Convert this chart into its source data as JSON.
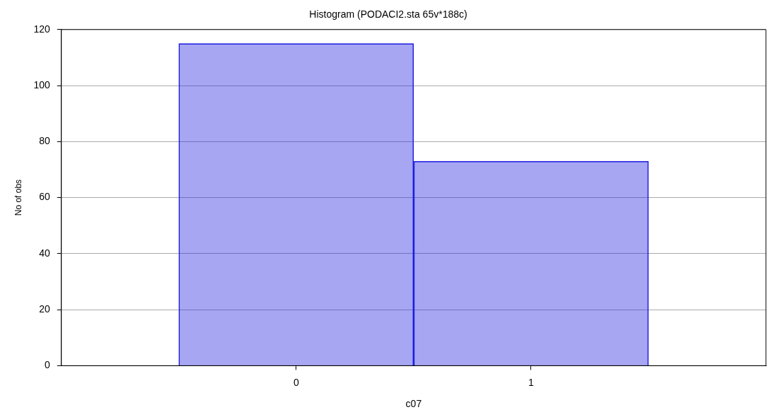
{
  "chart_data": {
    "type": "histogram",
    "title": "Histogram (PODACI2.sta 65v*188c)",
    "xlabel": "c07",
    "ylabel": "No of obs",
    "bins": [
      -0.5,
      0.5,
      1.5
    ],
    "values": [
      115,
      73
    ],
    "color": "#2020e0",
    "xlim": [
      -1,
      2
    ],
    "xticks": [
      0,
      1
    ],
    "ylim": [
      0,
      120
    ],
    "yticks": [
      0,
      20,
      40,
      60,
      80,
      100,
      120
    ],
    "grid": "y",
    "legend": false
  }
}
